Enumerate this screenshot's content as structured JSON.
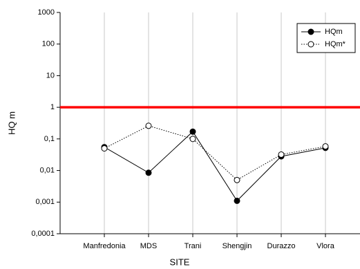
{
  "chart_data": {
    "type": "line",
    "xlabel": "SITE",
    "ylabel": "HQ m",
    "categories": [
      "Manfredonia",
      "MDS",
      "Trani",
      "Shengjin",
      "Durazzo",
      "Vlora"
    ],
    "series": [
      {
        "name": "HQm",
        "color": "#000000",
        "linestyle": "solid",
        "marker": "filled",
        "values": [
          0.055,
          0.0085,
          0.17,
          0.0011,
          0.028,
          0.052
        ]
      },
      {
        "name": "HQm*",
        "color": "#000000",
        "linestyle": "dotted",
        "marker": "open",
        "values": [
          0.05,
          0.26,
          0.1,
          0.005,
          0.032,
          0.058
        ]
      }
    ],
    "log_y": true,
    "ylim": [
      0.0001,
      1000
    ],
    "yticks": [
      {
        "value": 0.0001,
        "label": "0,0001"
      },
      {
        "value": 0.001,
        "label": "0,001"
      },
      {
        "value": 0.01,
        "label": "0,01"
      },
      {
        "value": 0.1,
        "label": "0,1"
      },
      1,
      10,
      100,
      1000
    ],
    "reference_line": {
      "value": 1,
      "color": "#ff0000"
    },
    "grid": true,
    "legend": "upper right"
  }
}
